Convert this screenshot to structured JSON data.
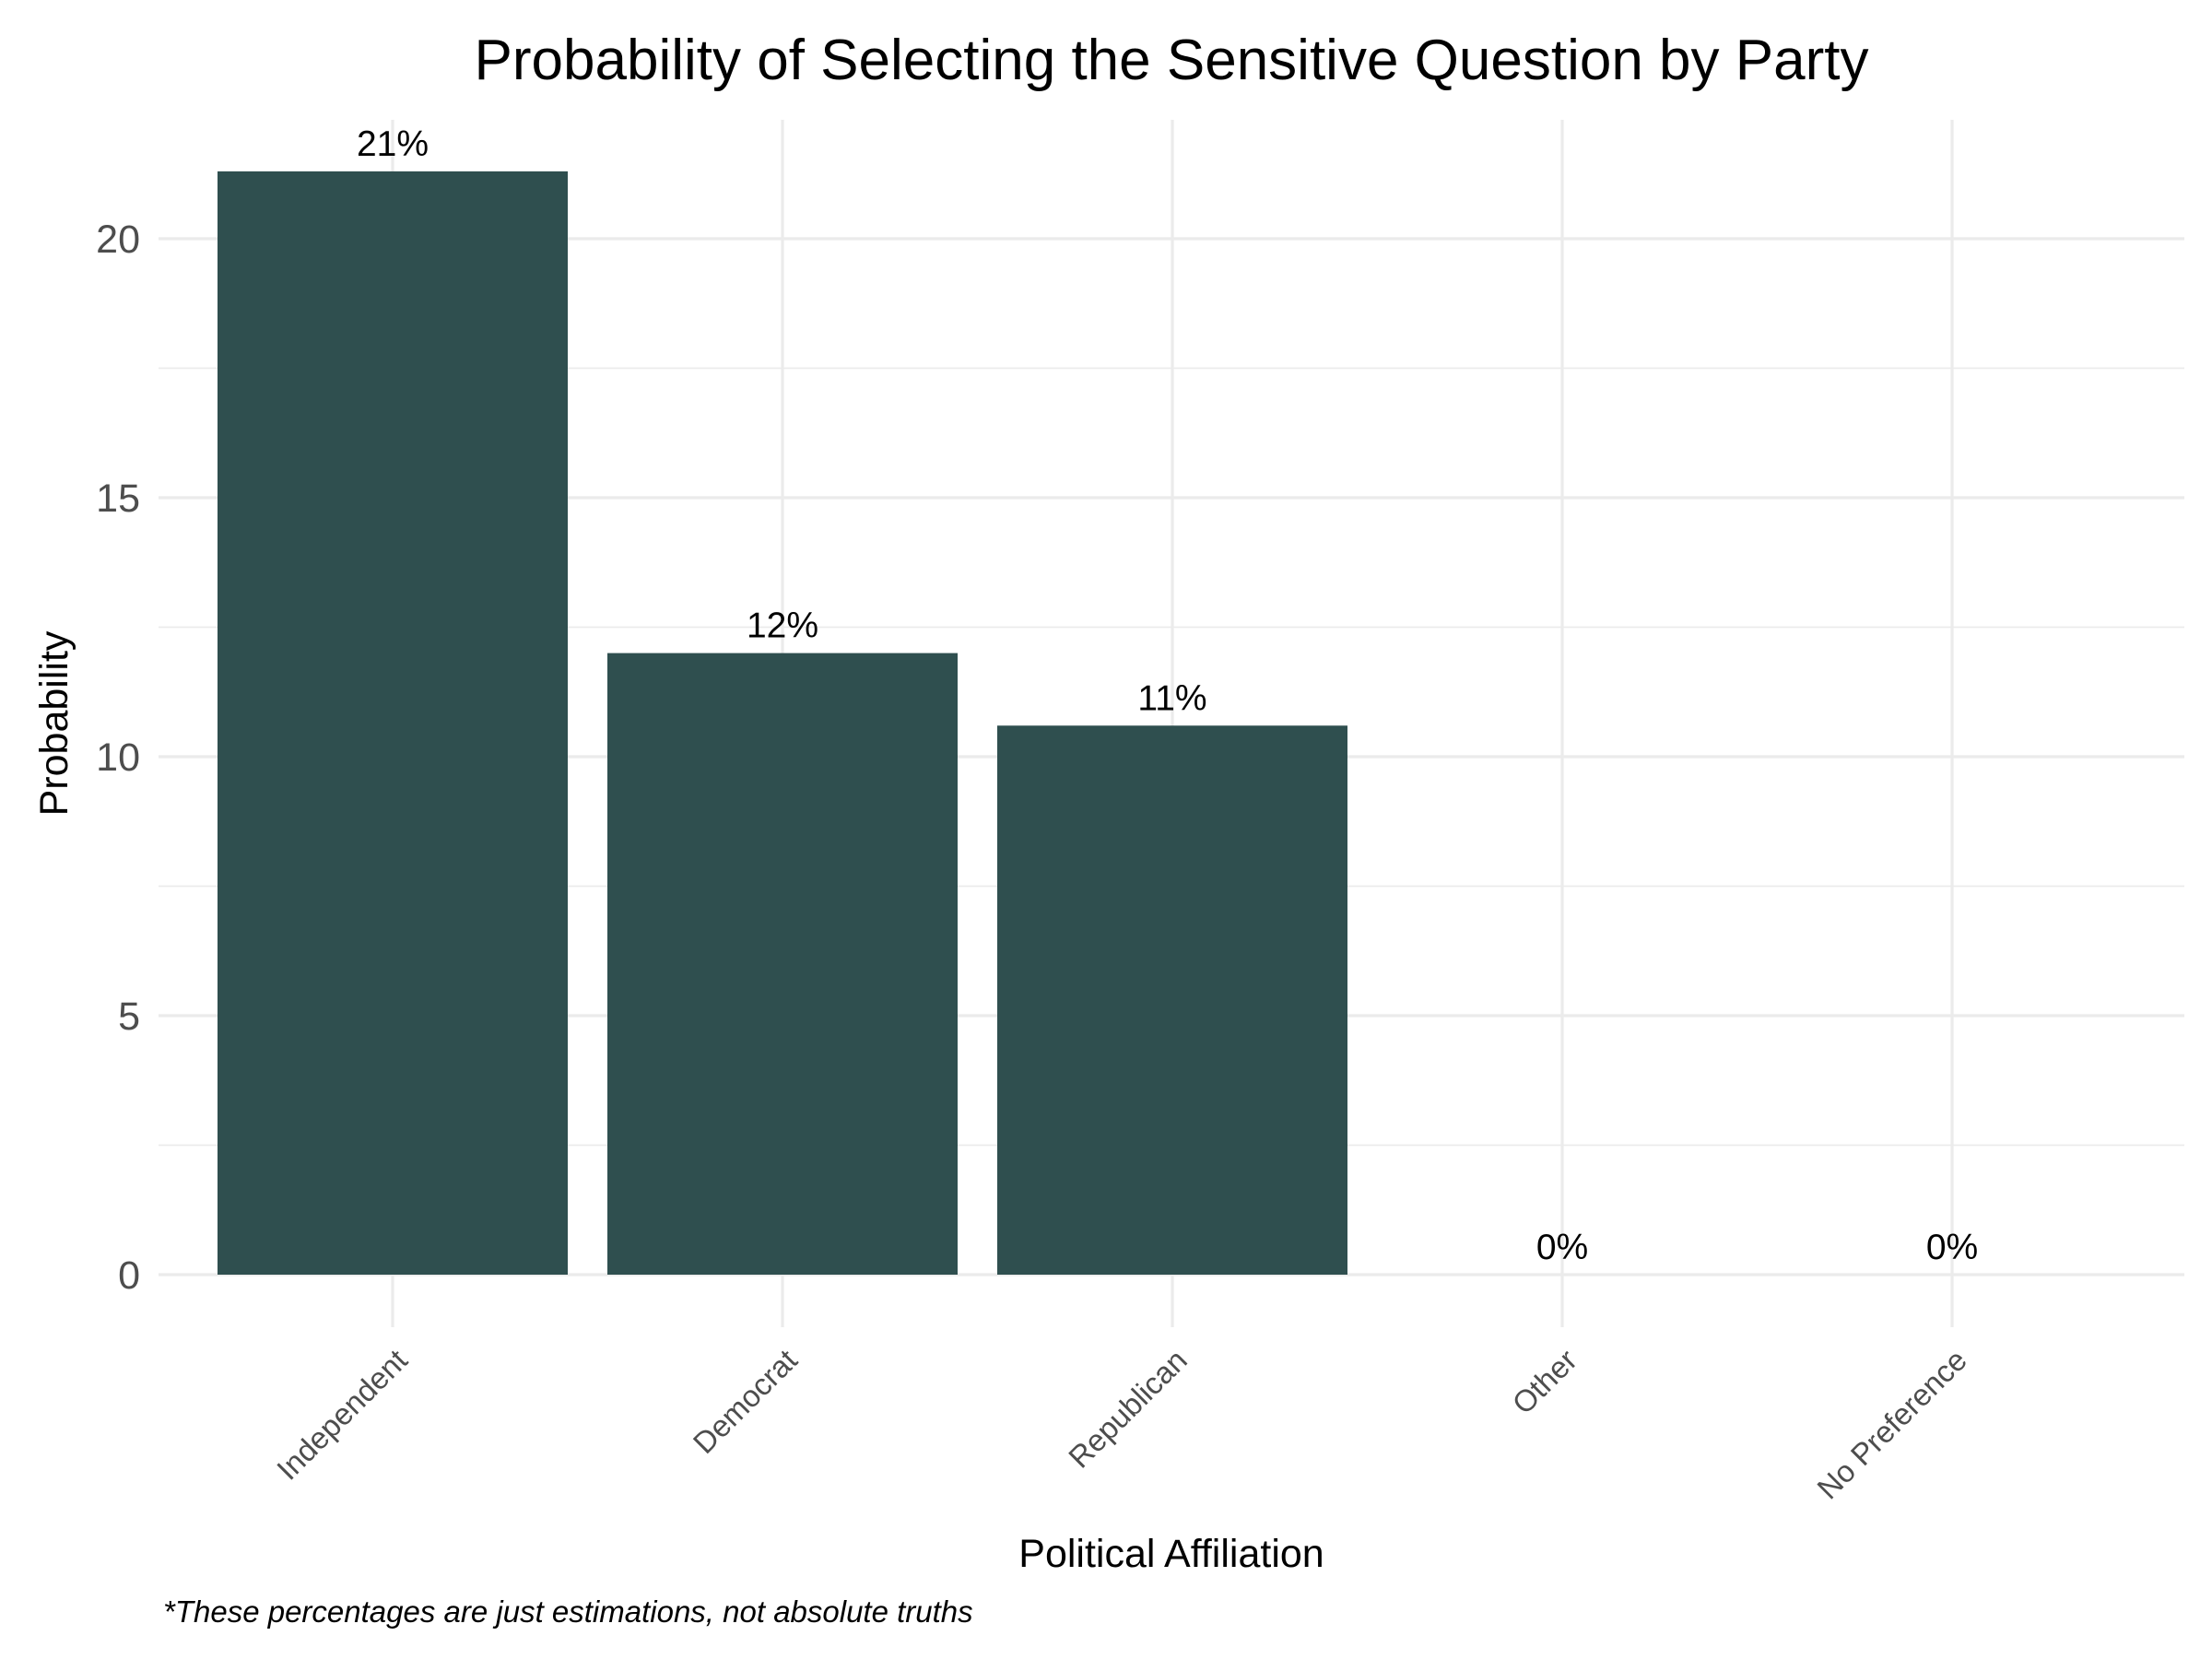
{
  "chart_data": {
    "type": "bar",
    "title": "Probability of Selecting the Sensitive Question by Party",
    "xlabel": "Political Affiliation",
    "ylabel": "Probability",
    "categories": [
      "Independent",
      "Democrat",
      "Republican",
      "Other",
      "No Preference"
    ],
    "values": [
      21.3,
      12.0,
      10.6,
      0,
      0
    ],
    "data_labels": [
      "21%",
      "12%",
      "11%",
      "0%",
      "0%"
    ],
    "y_ticks": [
      "0",
      "5",
      "10",
      "15",
      "20"
    ],
    "ylim": [
      0,
      22.3
    ],
    "grid": true,
    "legend": "none",
    "caption": "*These percentages are just estimations, not absolute truths",
    "bar_color": "#2f4f4f"
  }
}
